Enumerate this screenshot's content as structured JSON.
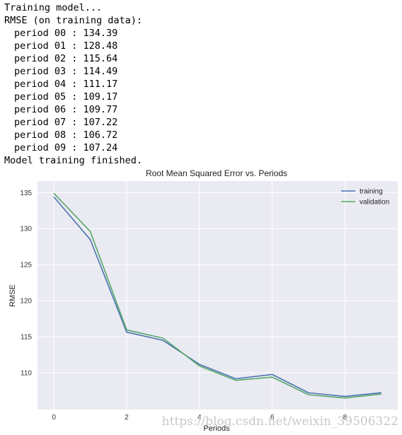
{
  "console": {
    "header1": "Training model...",
    "header2": "RMSE (on training data):",
    "periods": [
      "period 00 : 134.39",
      "period 01 : 128.48",
      "period 02 : 115.64",
      "period 03 : 114.49",
      "period 04 : 111.17",
      "period 05 : 109.17",
      "period 06 : 109.77",
      "period 07 : 107.22",
      "period 08 : 106.72",
      "period 09 : 107.24"
    ],
    "footer": "Model training finished."
  },
  "watermark": "https://blog.csdn.net/weixin_39506322",
  "chart_data": {
    "type": "line",
    "title": "Root Mean Squared Error vs. Periods",
    "xlabel": "Periods",
    "ylabel": "RMSE",
    "x": [
      0,
      1,
      2,
      3,
      4,
      5,
      6,
      7,
      8,
      9
    ],
    "xticks": [
      0,
      2,
      4,
      6,
      8
    ],
    "yticks": [
      110,
      115,
      120,
      125,
      130,
      135
    ],
    "xlim": [
      -0.45,
      9.45
    ],
    "ylim": [
      104.9,
      136.6
    ],
    "grid": true,
    "legend_position": "top-right",
    "series": [
      {
        "name": "training",
        "color": "#4c72b0",
        "values": [
          134.39,
          128.48,
          115.64,
          114.49,
          111.17,
          109.17,
          109.77,
          107.22,
          106.72,
          107.24
        ]
      },
      {
        "name": "validation",
        "color": "#55a868",
        "values": [
          134.9,
          129.6,
          115.95,
          114.8,
          110.95,
          108.95,
          109.4,
          106.95,
          106.5,
          107.05
        ]
      }
    ]
  }
}
